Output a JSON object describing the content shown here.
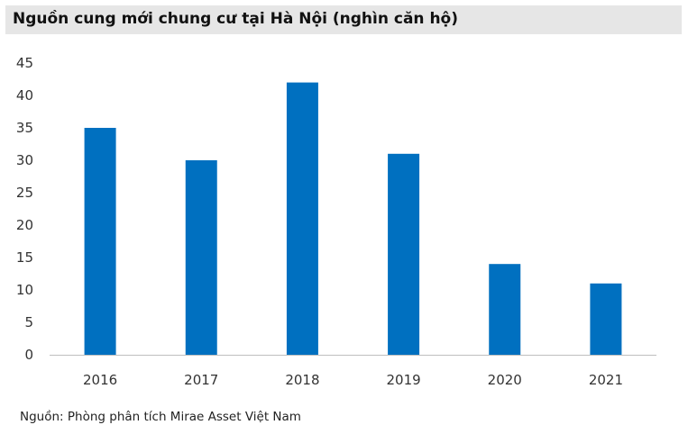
{
  "chart_data": {
    "type": "bar",
    "title": "Nguồn cung mới chung cư tại Hà Nội (nghìn căn hộ)",
    "categories": [
      "2016",
      "2017",
      "2018",
      "2019",
      "2020",
      "2021"
    ],
    "values": [
      35,
      30,
      42,
      31,
      14,
      11
    ],
    "ylim": [
      0,
      45
    ],
    "yticks": [
      "0",
      "5",
      "10",
      "15",
      "20",
      "25",
      "30",
      "35",
      "40",
      "45"
    ],
    "xlabel": "",
    "ylabel": "",
    "grid": false,
    "bar_color": "#0070c0",
    "axis_color": "#bfbfbf"
  },
  "source": "Nguồn: Phòng phân tích Mirae Asset Việt Nam"
}
